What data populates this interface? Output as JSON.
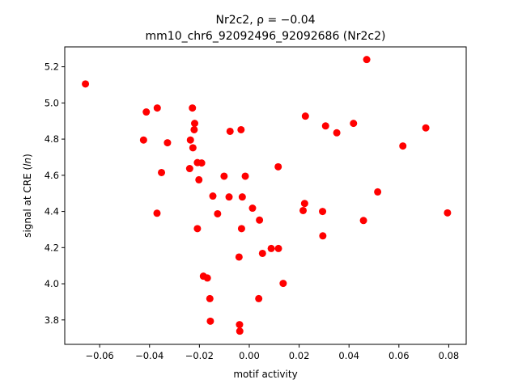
{
  "chart_data": {
    "type": "scatter",
    "title_line1": "Nr2c2, ρ = −0.04",
    "title_line2": "mm10_chr6_92092496_92092686 (Nr2c2)",
    "xlabel": "motif activity",
    "ylabel": "signal at CRE (ln)",
    "xlim": [
      -0.074,
      0.087
    ],
    "ylim": [
      3.665,
      5.31
    ],
    "xticks": [
      {
        "value": -0.06,
        "label": "−0.06"
      },
      {
        "value": -0.04,
        "label": "−0.04"
      },
      {
        "value": -0.02,
        "label": "−0.02"
      },
      {
        "value": 0.0,
        "label": "0.00"
      },
      {
        "value": 0.02,
        "label": "0.02"
      },
      {
        "value": 0.04,
        "label": "0.04"
      },
      {
        "value": 0.06,
        "label": "0.06"
      },
      {
        "value": 0.08,
        "label": "0.08"
      }
    ],
    "yticks": [
      {
        "value": 3.8,
        "label": "3.8"
      },
      {
        "value": 4.0,
        "label": "4.0"
      },
      {
        "value": 4.2,
        "label": "4.2"
      },
      {
        "value": 4.4,
        "label": "4.4"
      },
      {
        "value": 4.6,
        "label": "4.6"
      },
      {
        "value": 4.8,
        "label": "4.8"
      },
      {
        "value": 5.0,
        "label": "5.0"
      },
      {
        "value": 5.2,
        "label": "5.2"
      }
    ],
    "grid": false,
    "marker_color": "#ff0000",
    "points": [
      {
        "x": -0.0657,
        "y": 5.105
      },
      {
        "x": -0.0413,
        "y": 4.95
      },
      {
        "x": -0.0369,
        "y": 4.972
      },
      {
        "x": -0.0424,
        "y": 4.795
      },
      {
        "x": -0.0328,
        "y": 4.78
      },
      {
        "x": -0.0352,
        "y": 4.615
      },
      {
        "x": -0.037,
        "y": 4.39
      },
      {
        "x": -0.0228,
        "y": 4.972
      },
      {
        "x": -0.0219,
        "y": 4.887
      },
      {
        "x": -0.0221,
        "y": 4.852
      },
      {
        "x": -0.0236,
        "y": 4.795
      },
      {
        "x": -0.0226,
        "y": 4.752
      },
      {
        "x": -0.0239,
        "y": 4.637
      },
      {
        "x": -0.0208,
        "y": 4.67
      },
      {
        "x": -0.0191,
        "y": 4.668
      },
      {
        "x": -0.0202,
        "y": 4.575
      },
      {
        "x": -0.0208,
        "y": 4.305
      },
      {
        "x": -0.0184,
        "y": 4.042
      },
      {
        "x": -0.0168,
        "y": 4.032
      },
      {
        "x": -0.0158,
        "y": 3.918
      },
      {
        "x": -0.0156,
        "y": 3.793
      },
      {
        "x": -0.0146,
        "y": 4.485
      },
      {
        "x": -0.0127,
        "y": 4.387
      },
      {
        "x": -0.0101,
        "y": 4.595
      },
      {
        "x": -0.0081,
        "y": 4.48
      },
      {
        "x": -0.0077,
        "y": 4.843
      },
      {
        "x": -0.0033,
        "y": 4.852
      },
      {
        "x": -0.0028,
        "y": 4.48
      },
      {
        "x": -0.0016,
        "y": 4.595
      },
      {
        "x": -0.0031,
        "y": 4.305
      },
      {
        "x": -0.0041,
        "y": 4.148
      },
      {
        "x": -0.0039,
        "y": 3.774
      },
      {
        "x": -0.0038,
        "y": 3.738
      },
      {
        "x": 0.0013,
        "y": 4.418
      },
      {
        "x": 0.0041,
        "y": 4.352
      },
      {
        "x": 0.0053,
        "y": 4.168
      },
      {
        "x": 0.0038,
        "y": 3.918
      },
      {
        "x": 0.0088,
        "y": 4.195
      },
      {
        "x": 0.0117,
        "y": 4.195
      },
      {
        "x": 0.0116,
        "y": 4.647
      },
      {
        "x": 0.0136,
        "y": 4.002
      },
      {
        "x": 0.0225,
        "y": 4.927
      },
      {
        "x": 0.0222,
        "y": 4.444
      },
      {
        "x": 0.0216,
        "y": 4.405
      },
      {
        "x": 0.0294,
        "y": 4.4
      },
      {
        "x": 0.0295,
        "y": 4.265
      },
      {
        "x": 0.0306,
        "y": 4.873
      },
      {
        "x": 0.0351,
        "y": 4.835
      },
      {
        "x": 0.0418,
        "y": 4.887
      },
      {
        "x": 0.0458,
        "y": 4.35
      },
      {
        "x": 0.0471,
        "y": 5.24
      },
      {
        "x": 0.0515,
        "y": 4.508
      },
      {
        "x": 0.0616,
        "y": 4.762
      },
      {
        "x": 0.0708,
        "y": 4.862
      },
      {
        "x": 0.0795,
        "y": 4.392
      }
    ]
  }
}
